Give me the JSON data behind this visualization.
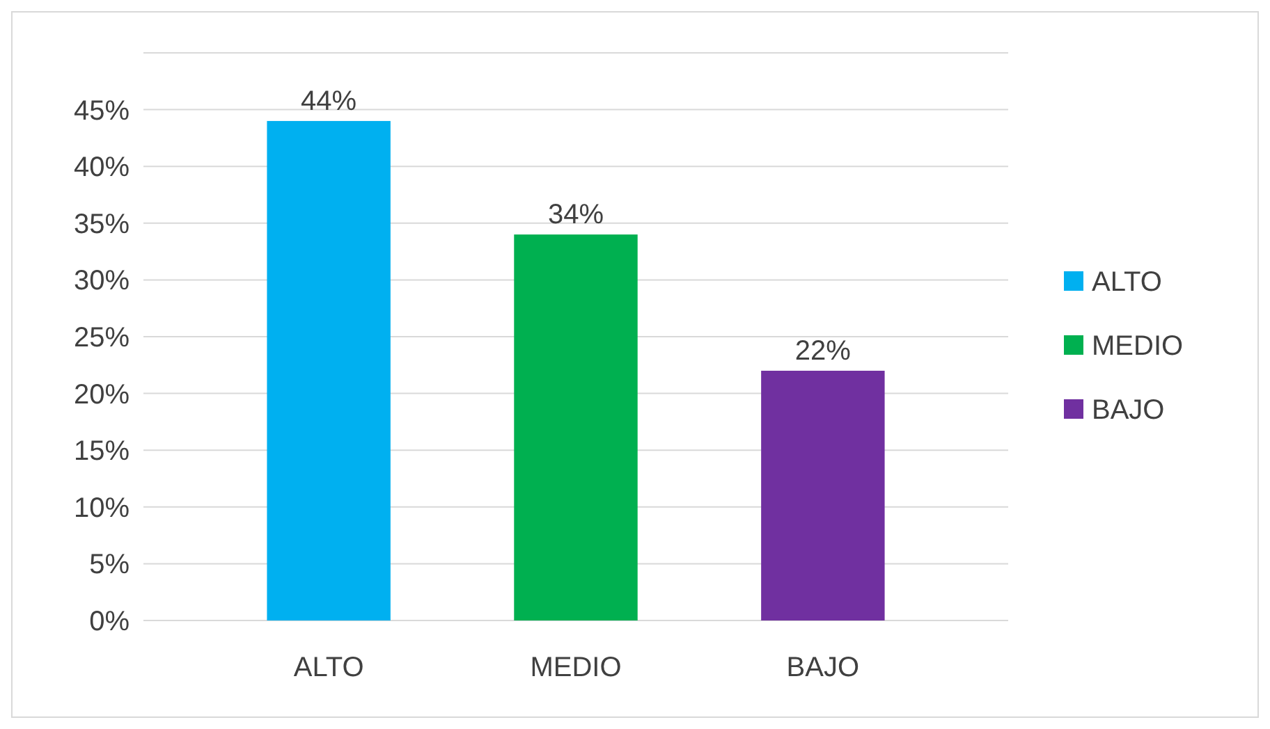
{
  "chart_data": {
    "type": "bar",
    "categories": [
      "ALTO",
      "MEDIO",
      "BAJO"
    ],
    "series": [
      {
        "name": "ALTO",
        "color": "#00b0f0",
        "values": [
          44,
          null,
          null
        ],
        "value_labels": [
          "44%",
          null,
          null
        ]
      },
      {
        "name": "MEDIO",
        "color": "#00b050",
        "values": [
          null,
          34,
          null
        ],
        "value_labels": [
          null,
          "34%",
          null
        ]
      },
      {
        "name": "BAJO",
        "color": "#7030a0",
        "values": [
          null,
          null,
          22
        ],
        "value_labels": [
          null,
          null,
          "22%"
        ]
      }
    ],
    "ylim": [
      0,
      50
    ],
    "yticks": [
      {
        "value": 0,
        "label": "0%"
      },
      {
        "value": 5,
        "label": "5%"
      },
      {
        "value": 10,
        "label": "10%"
      },
      {
        "value": 15,
        "label": "15%"
      },
      {
        "value": 20,
        "label": "20%"
      },
      {
        "value": 25,
        "label": "25%"
      },
      {
        "value": 30,
        "label": "30%"
      },
      {
        "value": 35,
        "label": "35%"
      },
      {
        "value": 40,
        "label": "40%"
      },
      {
        "value": 45,
        "label": "45%"
      },
      {
        "value": 50,
        "label": null
      }
    ],
    "grid": "y",
    "legend": "right"
  }
}
